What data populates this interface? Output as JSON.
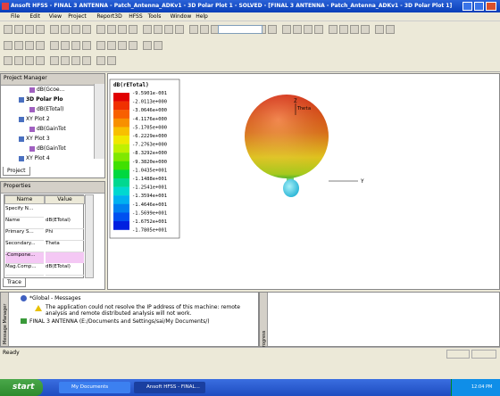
{
  "title_bar": {
    "title": "Ansoft HFSS - FINAL 3 ANTENNA - Patch_Antenna_ADKv1 - 3D Polar Plot 1 - SOLVED - [FINAL 3 ANTENNA - Patch_Antenna_ADKv1 - 3D Polar Plot 1]"
  },
  "menu": [
    "File",
    "Edit",
    "View",
    "Project",
    "Report3D",
    "HFSS",
    "Tools",
    "Window",
    "Help"
  ],
  "project_manager": {
    "title": "Project Manager",
    "tree": [
      "dB(Gcoe...",
      "3D Polar Plo",
      "dB(ETotal)",
      "XY Plot 2",
      "dB(GainTot",
      "XY Plot 3",
      "dB(GainTot",
      "XY Plot 4"
    ],
    "tab": "Project"
  },
  "properties": {
    "title": "Properties",
    "columns": [
      "Name",
      "Value"
    ],
    "rows": [
      {
        "name": "Specify N..."
      },
      {
        "name": "Name",
        "value": "dB(ETotal)"
      },
      {
        "name": "Primary S...",
        "value": "Phi"
      },
      {
        "name": "Secondary...",
        "value": "Theta"
      },
      {
        "name": "-Compone..."
      },
      {
        "name": "Mag.Comp...",
        "value": "dB(ETotal)"
      }
    ],
    "tab": "Trace"
  },
  "view": {
    "legend_title": "dB(rETotal)",
    "legend_values": [
      "-9.5901e-001",
      "-2.0113e+000",
      "-3.0646e+000",
      "-4.1176e+000",
      "-5.1705e+000",
      "-6.2229e+000",
      "-7.2763e+000",
      "-8.3292e+000",
      "-9.3820e+000",
      "-1.0435e+001",
      "-1.1488e+001",
      "-1.2541e+001",
      "-1.3594e+001",
      "-1.4646e+001",
      "-1.5699e+001",
      "-1.6752e+001",
      "-1.7805e+001"
    ],
    "axes": {
      "z": "Z",
      "theta": "Theta",
      "y": "Y"
    }
  },
  "messages": {
    "title": "*Global - Messages",
    "warning": "The application could not resolve the IP address of this machine: remote analysis and remote distributed analysis will not work.",
    "project": "FINAL 3 ANTENNA (E:/Documents and Settings/sai/My Documents/)",
    "side_label": "Message Manager"
  },
  "progress": {
    "side_label": "Progress"
  },
  "status": "Ready",
  "taskbar": {
    "start": "start",
    "items": [
      "My Documents",
      "Ansoft HFSS - FINAL..."
    ],
    "clock": "12:04 PM"
  }
}
